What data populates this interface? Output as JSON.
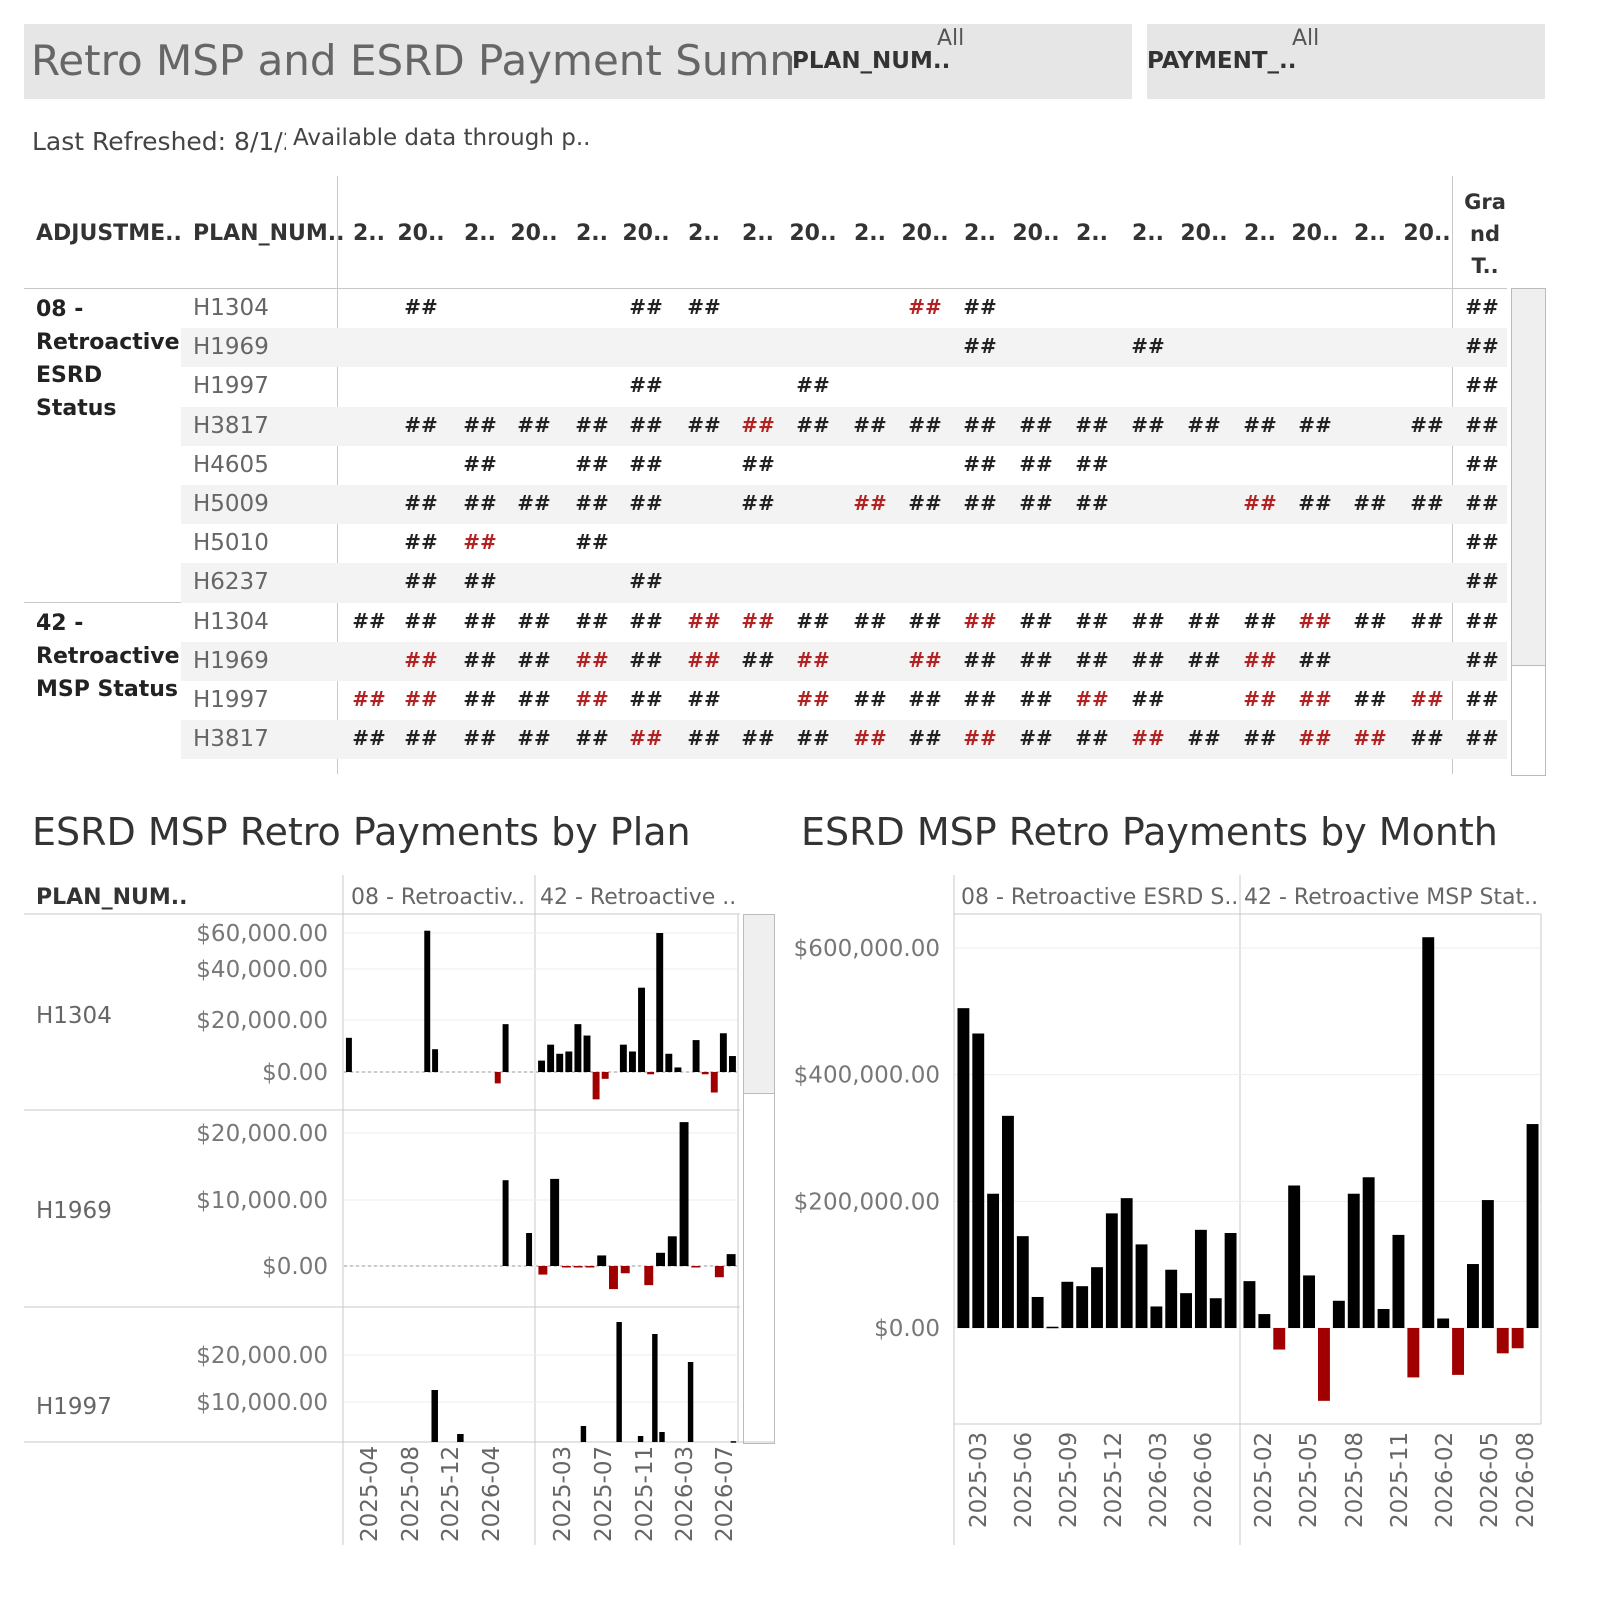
{
  "header": {
    "title": "Retro MSP and ESRD Payment Summ..",
    "filters": [
      {
        "label": "PLAN_NUM..",
        "value": "All"
      },
      {
        "label": "PAYMENT_..",
        "value": "All"
      }
    ],
    "last_refreshed": "Last Refreshed: 8/1/2",
    "data_through": "Available data through p.."
  },
  "table": {
    "col_headers": {
      "adjustment": "ADJUSTME..",
      "plan": "PLAN_NUM..",
      "grand_total": "Gra nd T.."
    },
    "month_headers": [
      "2..",
      "20..",
      "2..",
      "20..",
      "2..",
      "20..",
      "2..",
      "2..",
      "20..",
      "2..",
      "20..",
      "2..",
      "20..",
      "2..",
      "2..",
      "20..",
      "2..",
      "20..",
      "2..",
      "20.."
    ],
    "groups": [
      {
        "label": "08 - Retroactive ESRD Status",
        "rows": [
          {
            "plan": "H1304",
            "cells": [
              "",
              "k",
              "",
              "",
              "",
              "",
              "",
              "k",
              "k",
              "",
              "",
              "",
              "",
              "",
              "r",
              "k",
              "",
              "",
              "",
              "",
              "",
              "",
              ""
            ]
          },
          {
            "plan": "H1969",
            "cells": []
          },
          {
            "plan": "H1997",
            "cells": []
          },
          {
            "plan": "H3817",
            "cells": []
          },
          {
            "plan": "H4605",
            "cells": []
          },
          {
            "plan": "H5009",
            "cells": []
          },
          {
            "plan": "H5010",
            "cells": []
          },
          {
            "plan": "H6237",
            "cells": []
          }
        ]
      },
      {
        "label": "42 - Retroactive MSP Status",
        "rows": [
          {
            "plan": "H1304",
            "cells": []
          },
          {
            "plan": "H1969",
            "cells": []
          },
          {
            "plan": "H1997",
            "cells": []
          },
          {
            "plan": "H3817",
            "cells": []
          }
        ]
      }
    ],
    "cell_text": "##",
    "matrix": [
      [
        "",
        "k",
        "",
        "",
        "",
        "k",
        "k",
        "",
        "",
        "",
        "r",
        "k",
        "",
        "",
        "",
        "",
        "",
        "",
        "",
        ""
      ],
      [
        "",
        "",
        "",
        "",
        "",
        "",
        "",
        "",
        "",
        "",
        "",
        "k",
        "",
        "",
        "k",
        "",
        "",
        "",
        "",
        ""
      ],
      [
        "",
        "",
        "",
        "",
        "",
        "k",
        "",
        "",
        "k",
        "",
        "",
        "",
        "",
        "",
        "",
        "",
        "",
        "",
        "",
        ""
      ],
      [
        "",
        "k",
        "k",
        "k",
        "k",
        "k",
        "k",
        "r",
        "k",
        "k",
        "k",
        "k",
        "k",
        "k",
        "k",
        "k",
        "k",
        "k",
        "",
        "k"
      ],
      [
        "",
        "",
        "k",
        "",
        "k",
        "k",
        "",
        "k",
        "",
        "",
        "",
        "k",
        "k",
        "k",
        "",
        "",
        "",
        "",
        "",
        ""
      ],
      [
        "",
        "k",
        "k",
        "k",
        "k",
        "k",
        "",
        "k",
        "",
        "r",
        "k",
        "k",
        "k",
        "k",
        "",
        "",
        "r",
        "k",
        "k",
        "k"
      ],
      [
        "",
        "k",
        "r",
        "",
        "k",
        "",
        "",
        "",
        "",
        "",
        "",
        "",
        "",
        "",
        "",
        "",
        "",
        "",
        "",
        ""
      ],
      [
        "",
        "k",
        "k",
        "",
        "",
        "k",
        "",
        "",
        "",
        "",
        "",
        "",
        "",
        "",
        "",
        "",
        "",
        "",
        "",
        ""
      ],
      [
        "k",
        "k",
        "k",
        "k",
        "k",
        "k",
        "r",
        "r",
        "k",
        "k",
        "k",
        "r",
        "k",
        "k",
        "k",
        "k",
        "k",
        "r",
        "k",
        "k"
      ],
      [
        "",
        "r",
        "k",
        "k",
        "r",
        "k",
        "r",
        "k",
        "r",
        "",
        "r",
        "k",
        "k",
        "k",
        "k",
        "k",
        "r",
        "k",
        "",
        ""
      ],
      [
        "r",
        "r",
        "k",
        "k",
        "r",
        "k",
        "k",
        "",
        "r",
        "k",
        "k",
        "k",
        "k",
        "r",
        "k",
        "",
        "r",
        "r",
        "k",
        "r"
      ],
      [
        "k",
        "k",
        "k",
        "k",
        "k",
        "r",
        "k",
        "k",
        "k",
        "r",
        "k",
        "r",
        "k",
        "k",
        "r",
        "k",
        "k",
        "r",
        "r",
        "k"
      ]
    ]
  },
  "colors": {
    "positive": "#000000",
    "negative": "#a00000",
    "negative_text": "#b22222"
  },
  "plan_chart": {
    "title": "ESRD MSP Retro Payments by Plan",
    "row_header": "PLAN_NUM..",
    "panels": [
      "08 - Retroactiv..",
      "42 - Retroactive .."
    ],
    "x_ticks_left": [
      "2025-04",
      "2025-08",
      "2025-12",
      "2026-04"
    ],
    "x_ticks_right": [
      "2025-03",
      "2025-07",
      "2025-11",
      "2026-03",
      "2026-07"
    ],
    "rows": [
      {
        "plan": "H1304",
        "y_ticks": [
          "$60,000.00",
          "$40,000.00",
          "$20,000.00",
          "$0.00"
        ]
      },
      {
        "plan": "H1969",
        "y_ticks": [
          "$20,000.00",
          "$10,000.00",
          "$0.00"
        ]
      },
      {
        "plan": "H1997",
        "y_ticks": [
          "$20,000.00",
          "$10,000.00"
        ]
      }
    ]
  },
  "chart_data": [
    {
      "type": "bar",
      "title": "ESRD MSP Retro Payments by Plan",
      "facet_rows": [
        "H1304",
        "H1969",
        "H1997"
      ],
      "facet_cols": [
        "08 - Retroactiv..",
        "42 - Retroactive .."
      ],
      "series": [
        {
          "plan": "H1304",
          "panel": "08 - Retroactiv..",
          "values": [
            15000,
            0,
            0,
            0,
            0,
            0,
            0,
            0,
            0,
            0,
            62000,
            10000,
            0,
            0,
            0,
            0,
            0,
            0,
            0,
            -5000,
            21000,
            0,
            0,
            0
          ]
        },
        {
          "plan": "H1304",
          "panel": "42 - Retroactive ..",
          "values": [
            5000,
            12000,
            8000,
            9000,
            21000,
            16000,
            -12000,
            -3000,
            0,
            12000,
            9000,
            37000,
            -1000,
            61000,
            8000,
            2000,
            0,
            14000,
            -1000,
            -9000,
            17000,
            7000
          ]
        },
        {
          "plan": "H1969",
          "panel": "08 - Retroactiv..",
          "values": [
            0,
            0,
            0,
            0,
            0,
            0,
            0,
            0,
            0,
            0,
            0,
            0,
            0,
            0,
            0,
            0,
            0,
            0,
            0,
            0,
            13000,
            0,
            0,
            5000
          ]
        },
        {
          "plan": "H1969",
          "panel": "42 - Retroactive ..",
          "values": [
            -1300,
            13200,
            -200,
            -200,
            -100,
            1600,
            -3500,
            -1100,
            0,
            -2900,
            2000,
            4500,
            21800,
            -200,
            0,
            -1700,
            1800
          ]
        },
        {
          "plan": "H1997",
          "panel": "08 - Retroactiv..",
          "values": [
            0,
            0,
            0,
            0,
            0,
            0,
            0,
            0,
            0,
            0,
            13000,
            0,
            0,
            2000,
            0,
            0,
            0,
            0,
            0,
            0,
            0,
            0
          ]
        },
        {
          "plan": "H1997",
          "panel": "42 - Retroactive ..",
          "values": [
            0,
            0,
            0,
            0,
            0,
            0,
            4000,
            0,
            0,
            0,
            0,
            30000,
            0,
            0,
            1500,
            0,
            27000,
            2500,
            0,
            0,
            0,
            20000,
            0,
            0,
            0,
            0,
            0,
            200
          ]
        }
      ]
    },
    {
      "type": "bar",
      "title": "ESRD MSP Retro Payments by Month",
      "panels": [
        "08 - Retroactive ESRD S..",
        "42 - Retroactive MSP Stat.."
      ],
      "y_ticks": [
        "$600,000.00",
        "$400,000.00",
        "$200,000.00",
        "$0.00"
      ],
      "ylim": [
        -110000,
        620000
      ],
      "x_ticks_left": [
        "2025-03",
        "2025-06",
        "2025-09",
        "2025-12",
        "2026-03",
        "2026-06"
      ],
      "x_ticks_right": [
        "2025-02",
        "2025-05",
        "2025-08",
        "2025-11",
        "2026-02",
        "2026-05",
        "2026-08"
      ],
      "series": [
        {
          "name": "08 - Retroactive ESRD S..",
          "values": [
            505000,
            465000,
            212000,
            335000,
            145000,
            49000,
            2000,
            73000,
            66000,
            96000,
            181000,
            205000,
            132000,
            34000,
            92000,
            55000,
            155000,
            47000,
            150000
          ]
        },
        {
          "name": "42 - Retroactive MSP Stat..",
          "values": [
            74000,
            22000,
            -34000,
            225000,
            83000,
            -115000,
            43000,
            212000,
            238000,
            30000,
            147000,
            -78000,
            617000,
            15000,
            -74000,
            101000,
            202000,
            -40000,
            -32000,
            322000
          ]
        }
      ]
    }
  ],
  "month_chart": {
    "title": "ESRD MSP Retro Payments by Month",
    "panels": [
      "08 - Retroactive ESRD S..",
      "42 - Retroactive MSP Stat.."
    ]
  }
}
